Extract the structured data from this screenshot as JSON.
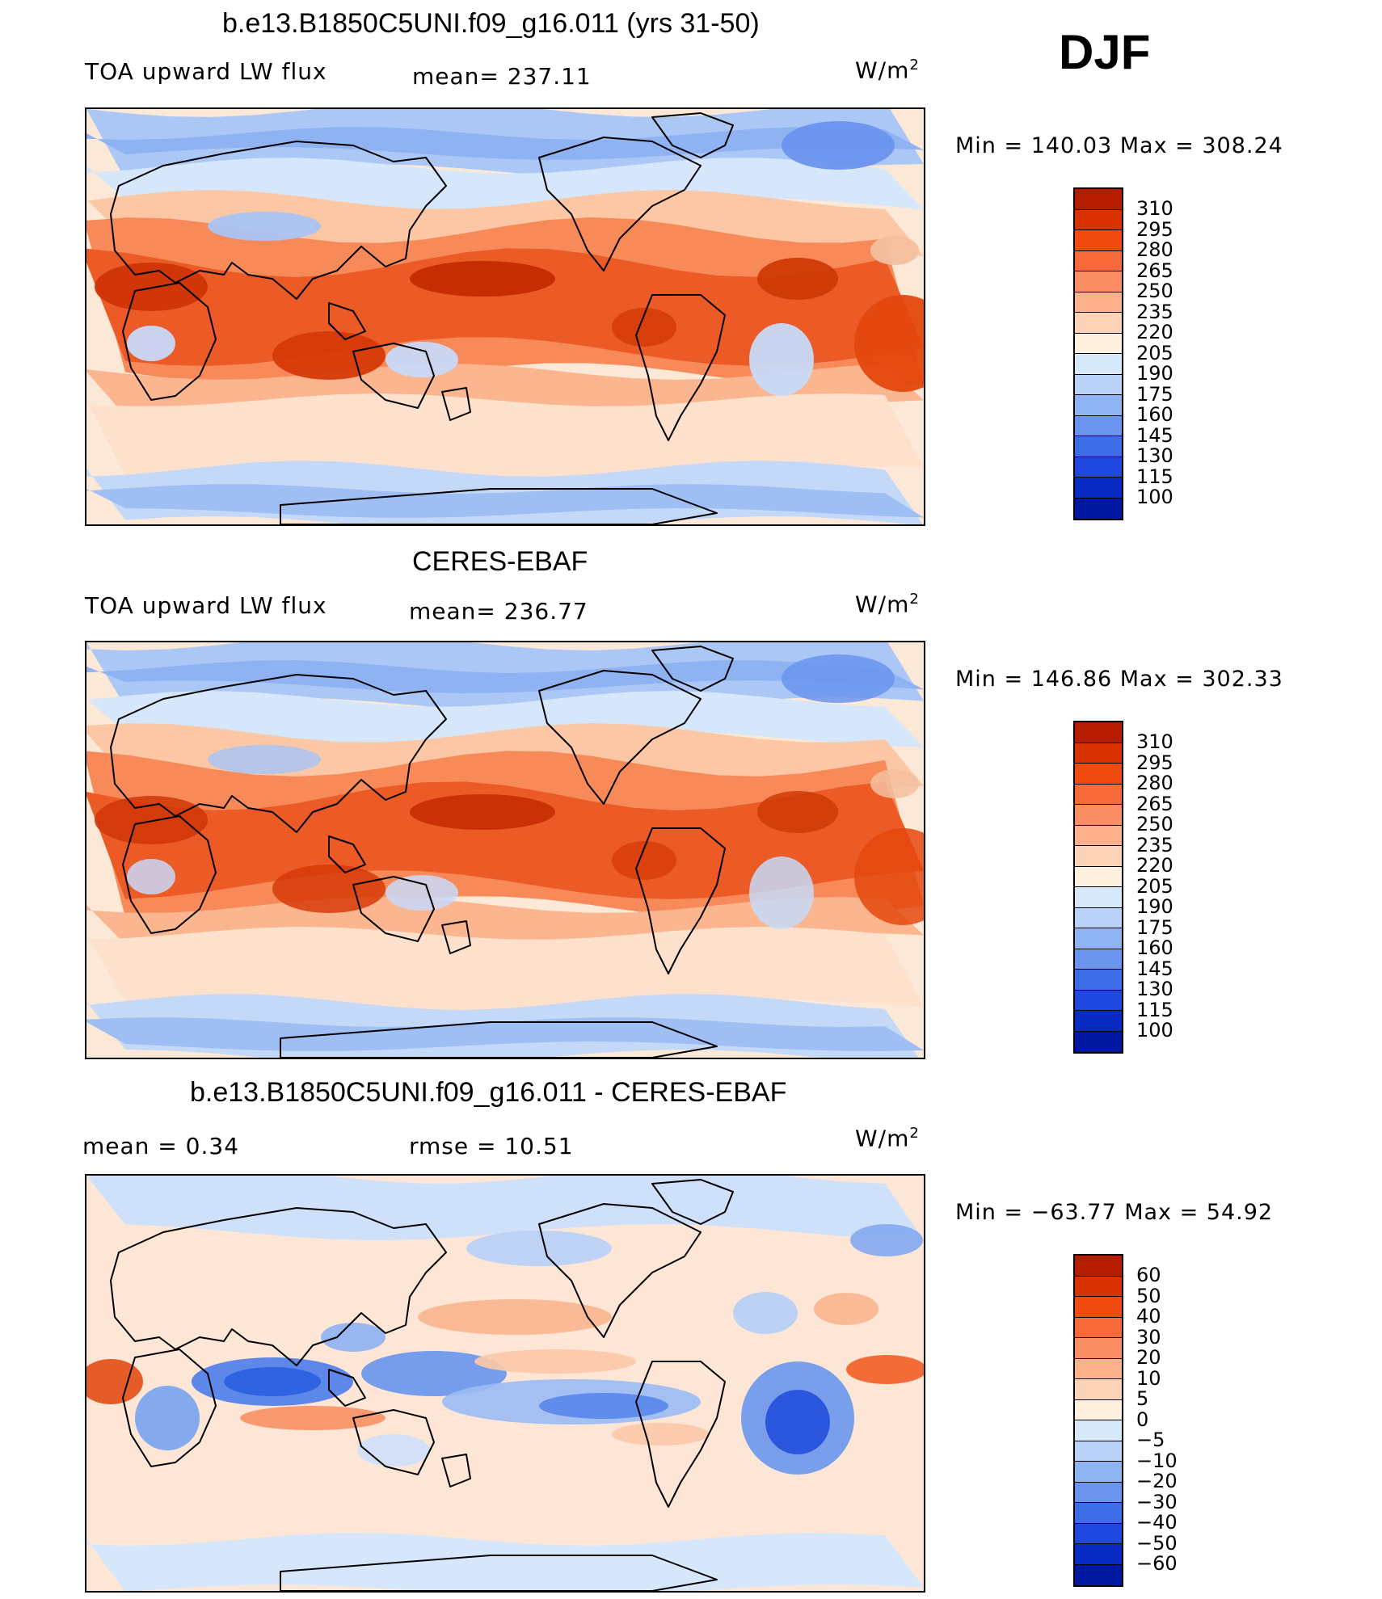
{
  "header": {
    "season": "DJF"
  },
  "panels": [
    {
      "title": "b.e13.B1850C5UNI.f09_g16.011 (yrs 31-50)",
      "left_label": "TOA upward LW flux",
      "mid_label": "mean=  237.11",
      "units": "W/m",
      "units_exp": "2",
      "minmax": "Min  =  140.03  Max  =  308.24",
      "colorbar": {
        "labels": [
          "310",
          "295",
          "280",
          "265",
          "250",
          "235",
          "220",
          "205",
          "190",
          "175",
          "160",
          "145",
          "130",
          "115",
          "100"
        ],
        "colors": [
          "#8b0000",
          "#b51c00",
          "#d83300",
          "#f04a10",
          "#f86a38",
          "#fb8e62",
          "#fdb08c",
          "#fdd3b8",
          "#fff0e0",
          "#d6e8fa",
          "#b8d2f8",
          "#8fb4f4",
          "#6a94ee",
          "#3d6ee8",
          "#1f48e0",
          "#0a2ac4",
          "#0018a0",
          "#000080"
        ]
      },
      "map_type": "abs",
      "variant": 0
    },
    {
      "title": "CERES-EBAF",
      "left_label": "TOA upward LW flux",
      "mid_label": "mean=  236.77",
      "units": "W/m",
      "units_exp": "2",
      "minmax": "Min  =  146.86  Max  =  302.33",
      "colorbar": {
        "labels": [
          "310",
          "295",
          "280",
          "265",
          "250",
          "235",
          "220",
          "205",
          "190",
          "175",
          "160",
          "145",
          "130",
          "115",
          "100"
        ],
        "colors": [
          "#8b0000",
          "#b51c00",
          "#d83300",
          "#f04a10",
          "#f86a38",
          "#fb8e62",
          "#fdb08c",
          "#fdd3b8",
          "#fff0e0",
          "#d6e8fa",
          "#b8d2f8",
          "#8fb4f4",
          "#6a94ee",
          "#3d6ee8",
          "#1f48e0",
          "#0a2ac4",
          "#0018a0",
          "#000080"
        ]
      },
      "map_type": "abs",
      "variant": 1
    },
    {
      "title": "b.e13.B1850C5UNI.f09_g16.011 - CERES-EBAF",
      "left_label": "mean  =     0.34",
      "mid_label": "rmse  =     10.51",
      "units": "W/m",
      "units_exp": "2",
      "minmax": "Min  =  −63.77  Max  =    54.92",
      "colorbar": {
        "labels": [
          "60",
          "50",
          "40",
          "30",
          "20",
          "10",
          "5",
          "0",
          "−5",
          "−10",
          "−20",
          "−30",
          "−40",
          "−50",
          "−60"
        ],
        "colors": [
          "#8b0000",
          "#b51c00",
          "#d83300",
          "#f04a10",
          "#f86a38",
          "#fb8e62",
          "#fdb08c",
          "#fdd3b8",
          "#fff0e0",
          "#d6e8fa",
          "#b8d2f8",
          "#8fb4f4",
          "#6a94ee",
          "#3d6ee8",
          "#1f48e0",
          "#0a2ac4",
          "#0018a0",
          "#000080"
        ]
      },
      "map_type": "diff",
      "variant": 2
    }
  ]
}
